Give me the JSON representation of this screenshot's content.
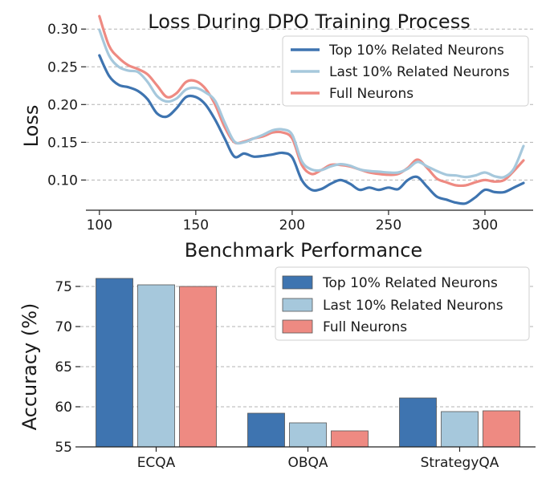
{
  "colors": {
    "top": "#3e74b0",
    "last": "#a6c8dc",
    "full": "#ee8a82"
  },
  "chart_data": [
    {
      "type": "line",
      "title": "Loss During DPO Training Process",
      "xlabel": "",
      "ylabel": "Loss",
      "xlim": [
        93,
        325
      ],
      "ylim": [
        0.06,
        0.33
      ],
      "xticks": [
        "100",
        "150",
        "200",
        "250",
        "300"
      ],
      "xtick_values": [
        100,
        150,
        200,
        250,
        300
      ],
      "yticks": [
        "0.10",
        "0.15",
        "0.20",
        "0.25",
        "0.30"
      ],
      "ytick_values": [
        0.1,
        0.15,
        0.2,
        0.25,
        0.3
      ],
      "grid": "y",
      "legend_position": "top-right",
      "x": [
        100,
        105,
        110,
        115,
        120,
        125,
        130,
        135,
        140,
        145,
        150,
        155,
        160,
        165,
        170,
        175,
        180,
        185,
        190,
        195,
        200,
        205,
        210,
        215,
        220,
        225,
        230,
        235,
        240,
        245,
        250,
        255,
        260,
        265,
        270,
        275,
        280,
        285,
        290,
        295,
        300,
        305,
        310,
        315,
        320
      ],
      "series": [
        {
          "name": "Top 10% Related Neurons",
          "color_key": "top",
          "values": [
            0.265,
            0.238,
            0.226,
            0.223,
            0.218,
            0.207,
            0.188,
            0.184,
            0.195,
            0.21,
            0.21,
            0.2,
            0.18,
            0.155,
            0.131,
            0.135,
            0.131,
            0.132,
            0.134,
            0.136,
            0.13,
            0.1,
            0.087,
            0.088,
            0.095,
            0.1,
            0.095,
            0.087,
            0.09,
            0.087,
            0.09,
            0.088,
            0.1,
            0.104,
            0.091,
            0.078,
            0.074,
            0.07,
            0.069,
            0.077,
            0.087,
            0.084,
            0.084,
            0.09,
            0.096
          ]
        },
        {
          "name": "Last 10% Related Neurons",
          "color_key": "last",
          "values": [
            0.299,
            0.265,
            0.25,
            0.245,
            0.243,
            0.23,
            0.211,
            0.204,
            0.208,
            0.22,
            0.222,
            0.216,
            0.205,
            0.176,
            0.151,
            0.15,
            0.155,
            0.16,
            0.166,
            0.167,
            0.16,
            0.125,
            0.114,
            0.113,
            0.118,
            0.121,
            0.119,
            0.114,
            0.112,
            0.111,
            0.11,
            0.11,
            0.115,
            0.124,
            0.118,
            0.112,
            0.107,
            0.106,
            0.104,
            0.106,
            0.11,
            0.105,
            0.104,
            0.115,
            0.145
          ]
        },
        {
          "name": "Full Neurons",
          "color_key": "full",
          "values": [
            0.317,
            0.278,
            0.262,
            0.252,
            0.247,
            0.24,
            0.225,
            0.21,
            0.215,
            0.23,
            0.231,
            0.221,
            0.2,
            0.17,
            0.15,
            0.151,
            0.155,
            0.158,
            0.163,
            0.163,
            0.155,
            0.12,
            0.108,
            0.113,
            0.12,
            0.12,
            0.118,
            0.114,
            0.11,
            0.108,
            0.107,
            0.108,
            0.116,
            0.127,
            0.116,
            0.102,
            0.097,
            0.093,
            0.093,
            0.097,
            0.1,
            0.098,
            0.1,
            0.112,
            0.126
          ]
        }
      ]
    },
    {
      "type": "bar",
      "title": "Benchmark Performance",
      "xlabel": "",
      "ylabel": "Accuracy (%)",
      "ylim": [
        55,
        77.5
      ],
      "yticks": [
        "55",
        "60",
        "65",
        "70",
        "75"
      ],
      "ytick_values": [
        55,
        60,
        65,
        70,
        75
      ],
      "grid": "y",
      "legend_position": "top-right",
      "categories": [
        "ECQA",
        "OBQA",
        "StrategyQA"
      ],
      "series": [
        {
          "name": "Top 10% Related Neurons",
          "color_key": "top",
          "values": [
            76.0,
            59.2,
            61.1
          ]
        },
        {
          "name": "Last 10% Related Neurons",
          "color_key": "last",
          "values": [
            75.2,
            58.0,
            59.4
          ]
        },
        {
          "name": "Full Neurons",
          "color_key": "full",
          "values": [
            75.0,
            57.0,
            59.5
          ]
        }
      ]
    }
  ]
}
